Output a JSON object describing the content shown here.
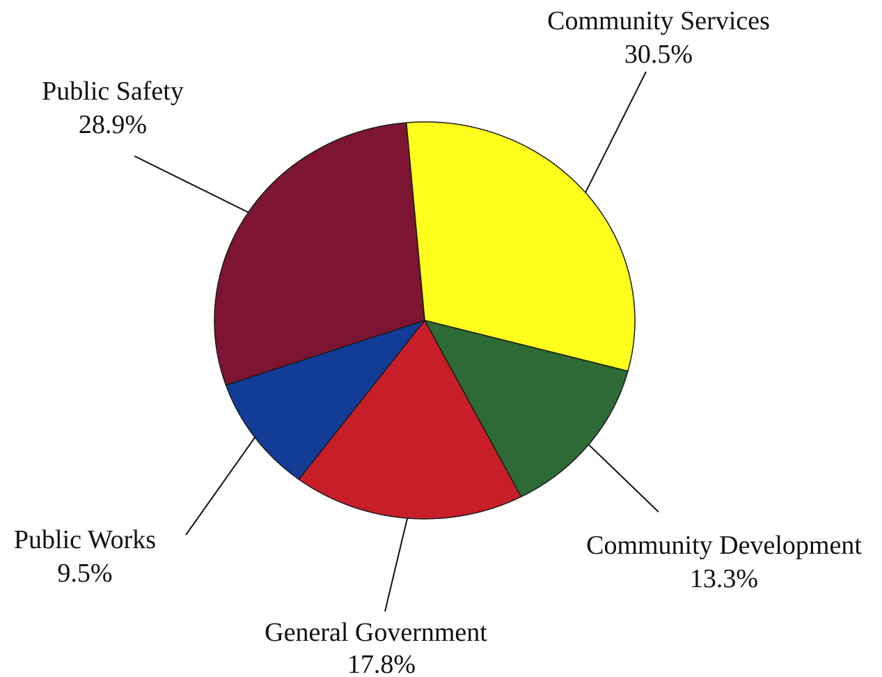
{
  "chart_data": {
    "type": "pie",
    "title": "",
    "slices": [
      {
        "label": "Community Services",
        "value": 30.5,
        "value_label": "30.5%",
        "color": "#ffff1e"
      },
      {
        "label": "Community Development",
        "value": 13.3,
        "value_label": "13.3%",
        "color": "#2e6a36"
      },
      {
        "label": "General Government",
        "value": 17.8,
        "value_label": "17.8%",
        "color": "#c81e2a"
      },
      {
        "label": "Public Works",
        "value": 9.5,
        "value_label": "9.5%",
        "color": "#123c96"
      },
      {
        "label": "Public Safety",
        "value": 28.9,
        "value_label": "28.9%",
        "color": "#7c1432"
      }
    ],
    "legend": "none",
    "labels": "outside with leader lines"
  }
}
